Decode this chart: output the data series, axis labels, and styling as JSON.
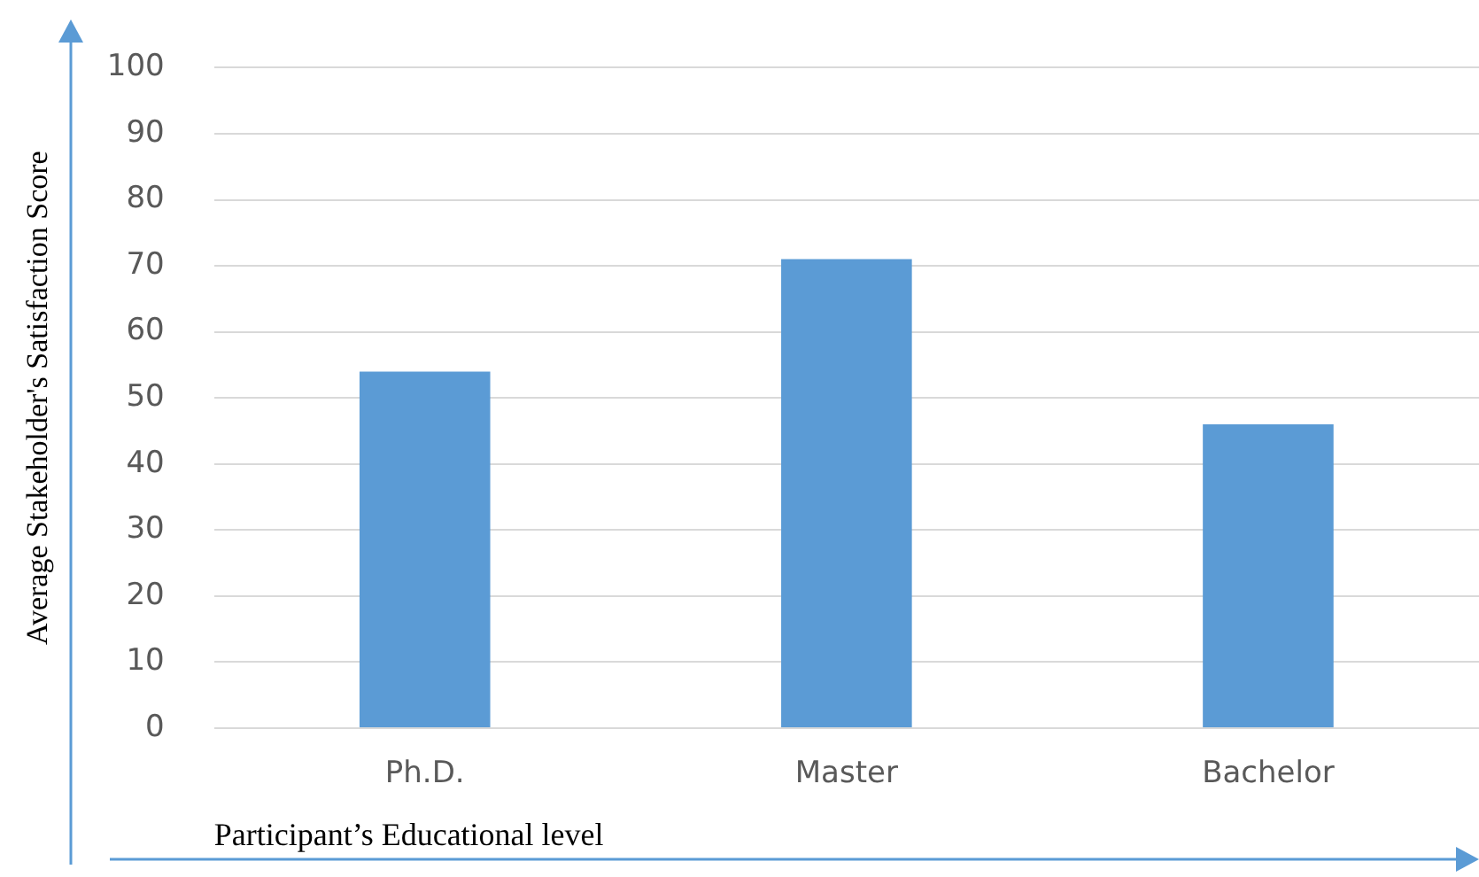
{
  "chart_data": {
    "type": "bar",
    "xlabel": "Participant’s Educational level",
    "ylabel": "Average Stakeholder's Satisfaction Score",
    "categories": [
      "Ph.D.",
      "Master",
      "Bachelor"
    ],
    "values": [
      54,
      71,
      46
    ],
    "color": "#5b9bd5",
    "ylim": [
      0,
      100
    ],
    "yticks": [
      0,
      10,
      20,
      30,
      40,
      50,
      60,
      70,
      80,
      90,
      100
    ],
    "grid": "y",
    "legend": false
  }
}
